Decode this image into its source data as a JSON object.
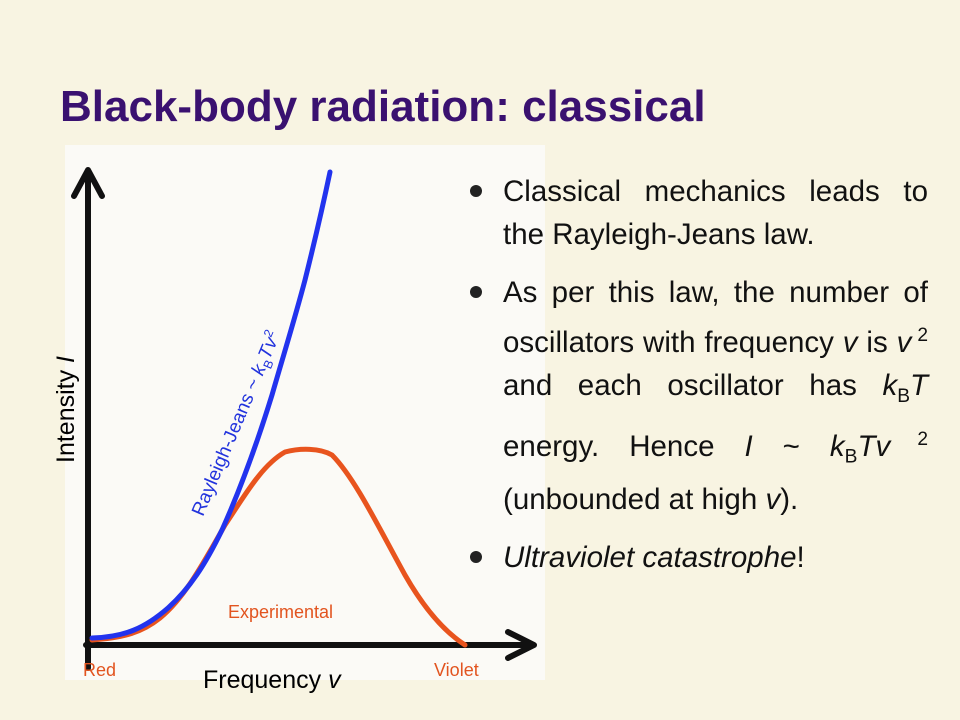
{
  "title": "Black-body radiation: classical",
  "diagram": {
    "y_axis_label": [
      "Intensity ",
      "I"
    ],
    "x_axis_label": [
      "Frequency ",
      "v"
    ],
    "x_left": "Red",
    "x_right": "Violet",
    "experimental_label": "Experimental",
    "rayleigh_label": [
      "Rayleigh-Jeans ~ ",
      "k",
      "B",
      "Tv",
      "2"
    ]
  },
  "bullets": [
    [
      "Classical mechanics leads to the Rayleigh-Jeans law."
    ],
    [
      "As per this law, the number of oscillators with frequency ",
      "v",
      " is ",
      "v",
      " 2",
      " and each oscillator has ",
      "k",
      "B",
      "T",
      " energy. Hence ",
      "I",
      " ~ ",
      "k",
      "B",
      "Tv",
      " 2",
      " (unbounded at high ",
      "v",
      ")."
    ],
    [
      "Ultraviolet catastrophe",
      "!"
    ]
  ]
}
